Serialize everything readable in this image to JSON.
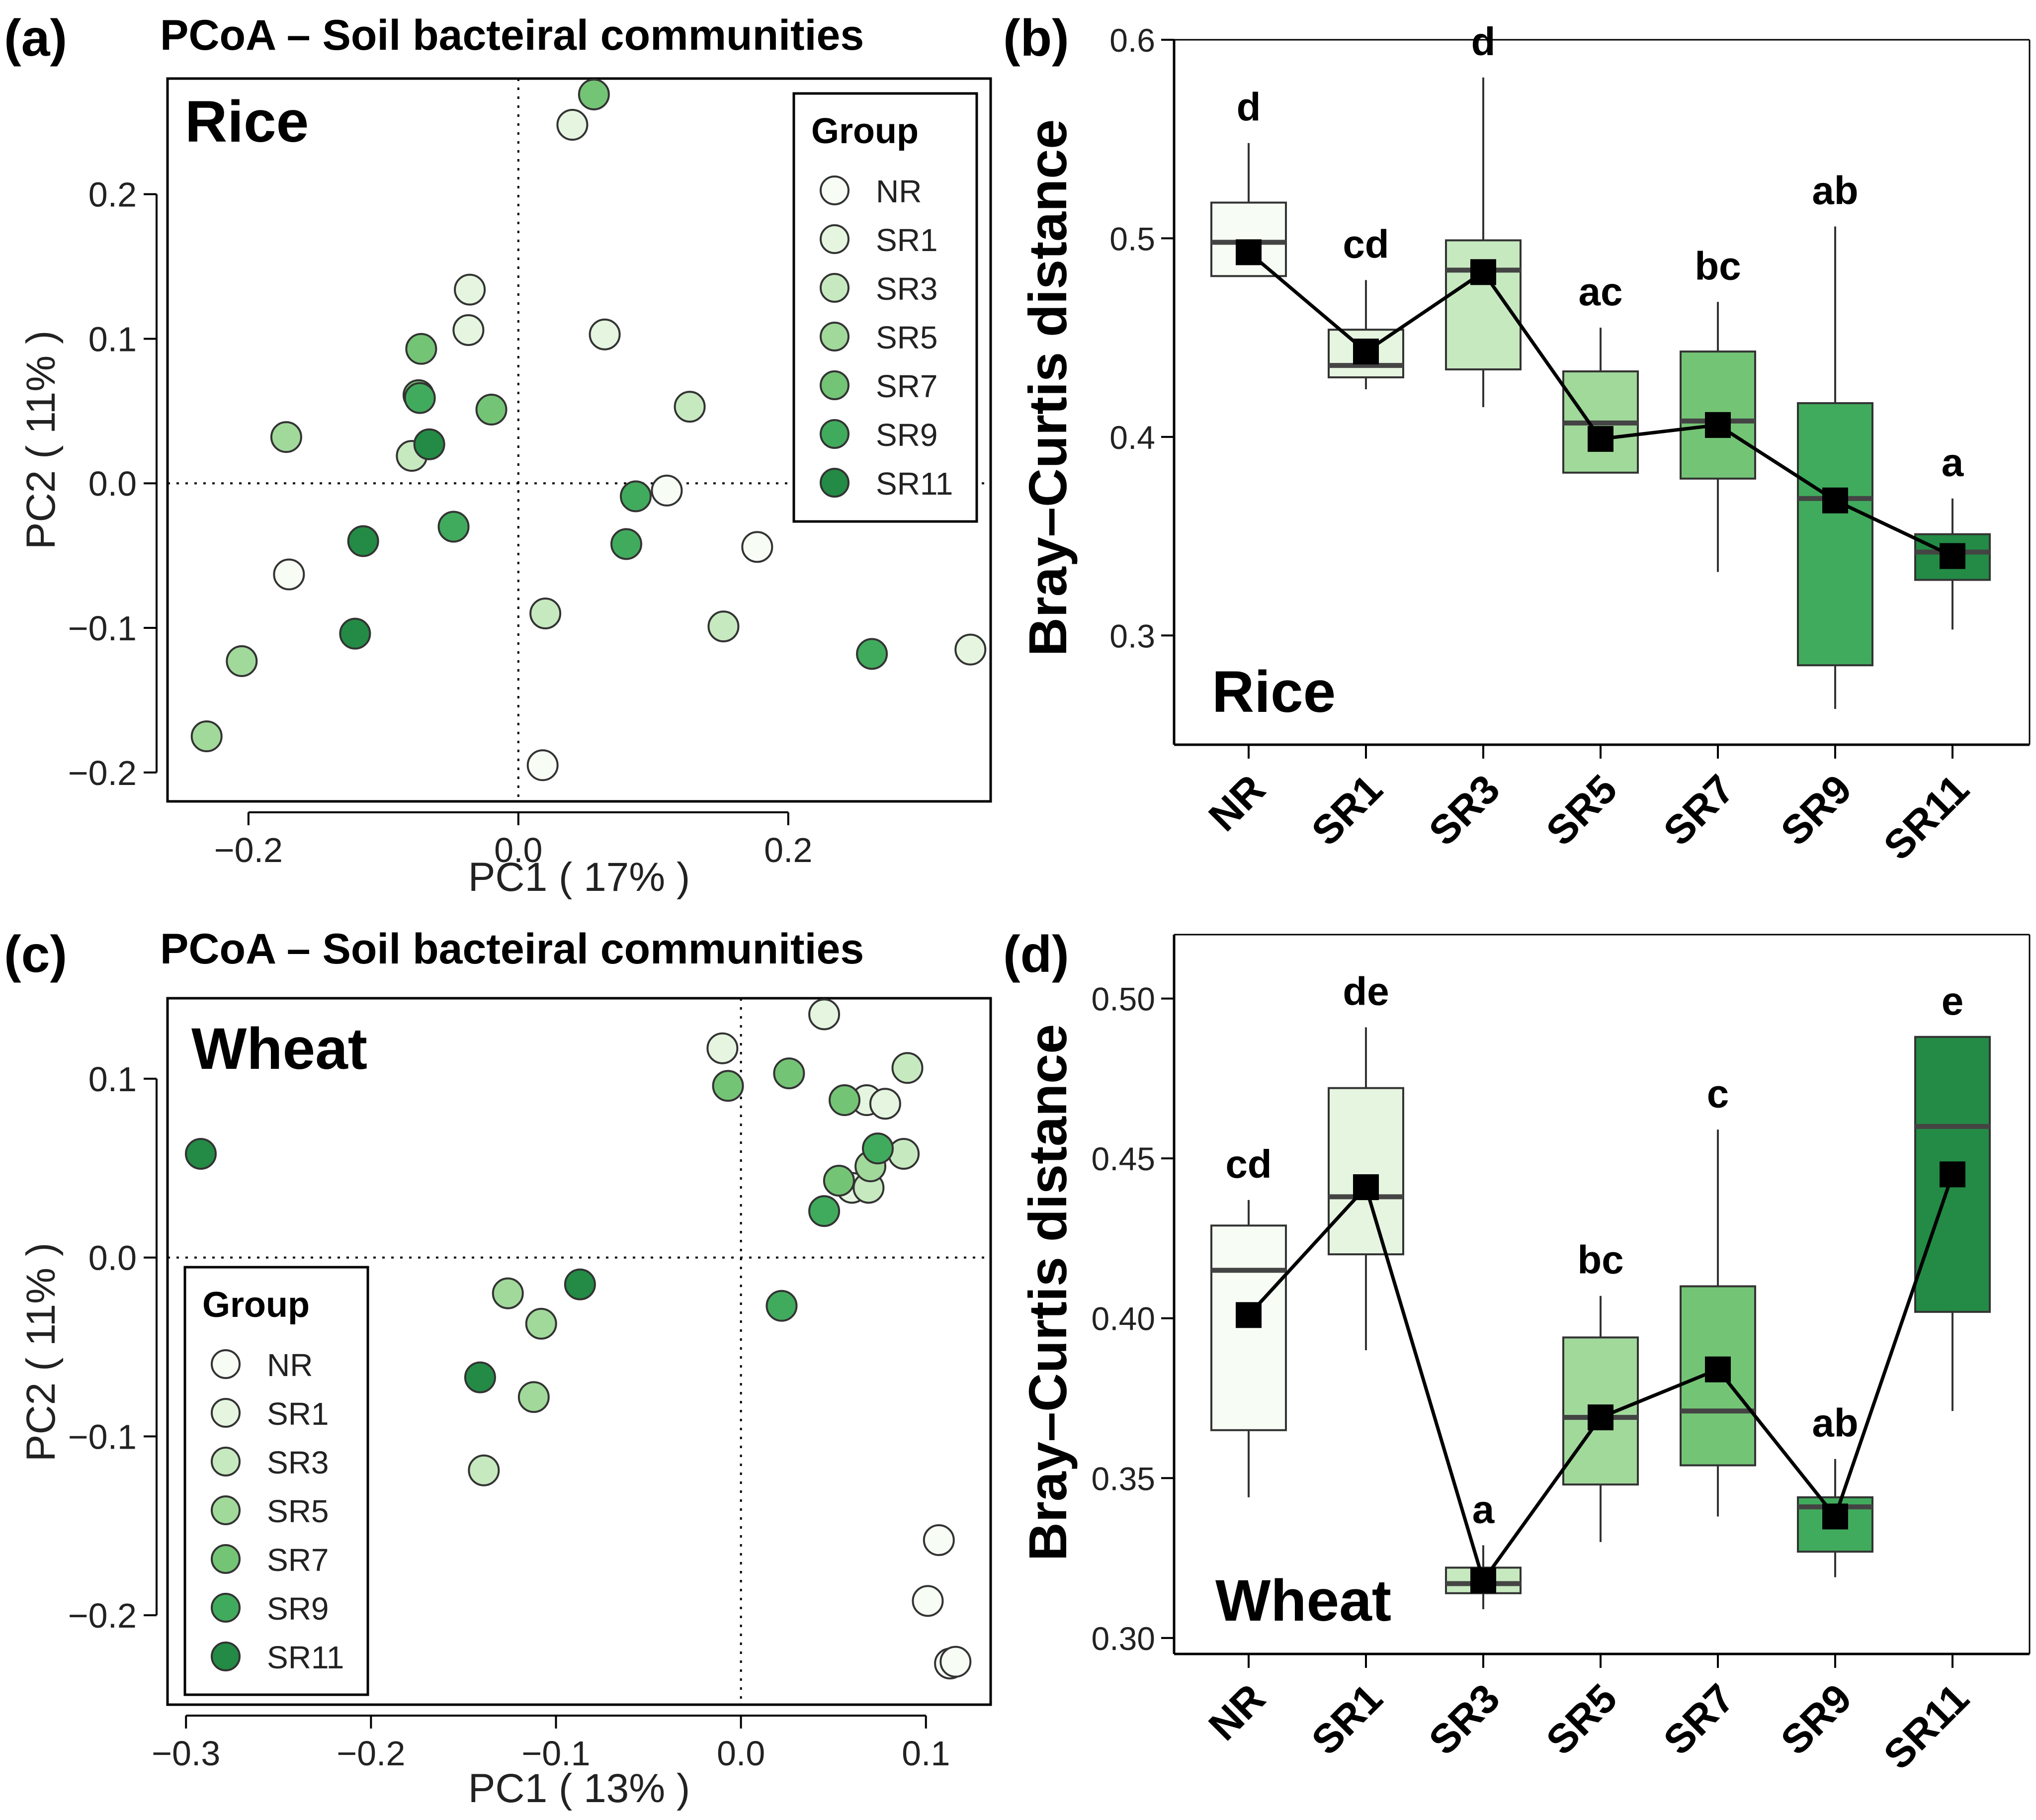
{
  "colors": {
    "NR": "#f7fcf5",
    "SR1": "#e5f5e0",
    "SR3": "#c7e9c0",
    "SR5": "#a1d99b",
    "SR7": "#74c476",
    "SR9": "#41ab5d",
    "SR11": "#238b45"
  },
  "chart_data": [
    {
      "id": "a",
      "type": "scatter",
      "panel_label": "(a)",
      "title": "PCoA – Soil bacteiral communities",
      "inset_label": "Rice",
      "xlabel": "PC1 ( 17% )",
      "ylabel": "PC2 ( 11% )",
      "xlim": [
        -0.26,
        0.35
      ],
      "ylim": [
        -0.22,
        0.28
      ],
      "xticks": [
        -0.2,
        0.0,
        0.2
      ],
      "xtick_labels": [
        "−0.2",
        "0.0",
        "0.2"
      ],
      "yticks": [
        -0.2,
        -0.1,
        0.0,
        0.1,
        0.2
      ],
      "ytick_labels": [
        "−0.2",
        "−0.1",
        "0.0",
        "0.1",
        "0.2"
      ],
      "legend": {
        "title": "Group",
        "entries": [
          "NR",
          "SR1",
          "SR3",
          "SR5",
          "SR7",
          "SR9",
          "SR11"
        ],
        "placement": "top-right"
      },
      "points": [
        {
          "group": "NR",
          "x": 0.018,
          "y": -0.195
        },
        {
          "group": "NR",
          "x": -0.17,
          "y": -0.063
        },
        {
          "group": "NR",
          "x": 0.11,
          "y": -0.005
        },
        {
          "group": "NR",
          "x": 0.177,
          "y": -0.044
        },
        {
          "group": "SR1",
          "x": 0.064,
          "y": 0.103
        },
        {
          "group": "SR1",
          "x": -0.036,
          "y": 0.134
        },
        {
          "group": "SR1",
          "x": -0.037,
          "y": 0.106
        },
        {
          "group": "SR1",
          "x": 0.04,
          "y": 0.248
        },
        {
          "group": "SR1",
          "x": 0.335,
          "y": -0.115
        },
        {
          "group": "SR3",
          "x": 0.127,
          "y": 0.053
        },
        {
          "group": "SR3",
          "x": 0.02,
          "y": -0.09
        },
        {
          "group": "SR3",
          "x": 0.152,
          "y": -0.099
        },
        {
          "group": "SR3",
          "x": -0.079,
          "y": 0.019
        },
        {
          "group": "SR5",
          "x": -0.172,
          "y": 0.032
        },
        {
          "group": "SR5",
          "x": -0.231,
          "y": -0.175
        },
        {
          "group": "SR5",
          "x": -0.205,
          "y": -0.123
        },
        {
          "group": "SR7",
          "x": 0.056,
          "y": 0.269
        },
        {
          "group": "SR7",
          "x": -0.072,
          "y": 0.093
        },
        {
          "group": "SR7",
          "x": -0.074,
          "y": 0.061
        },
        {
          "group": "SR7",
          "x": -0.02,
          "y": 0.051
        },
        {
          "group": "SR9",
          "x": -0.073,
          "y": 0.059
        },
        {
          "group": "SR9",
          "x": 0.087,
          "y": -0.009
        },
        {
          "group": "SR9",
          "x": 0.08,
          "y": -0.042
        },
        {
          "group": "SR9",
          "x": -0.048,
          "y": -0.03
        },
        {
          "group": "SR9",
          "x": 0.262,
          "y": -0.118
        },
        {
          "group": "SR11",
          "x": -0.066,
          "y": 0.027
        },
        {
          "group": "SR11",
          "x": -0.115,
          "y": -0.04
        },
        {
          "group": "SR11",
          "x": -0.121,
          "y": -0.104
        }
      ]
    },
    {
      "id": "b",
      "type": "box",
      "panel_label": "(b)",
      "inset_label": "Rice",
      "ylabel": "Bray–Curtis distance",
      "ylim": [
        0.245,
        0.6
      ],
      "yticks": [
        0.3,
        0.4,
        0.5,
        0.6
      ],
      "ytick_labels": [
        "0.3",
        "0.4",
        "0.5",
        "0.6"
      ],
      "categories": [
        "NR",
        "SR1",
        "SR3",
        "SR5",
        "SR7",
        "SR9",
        "SR11"
      ],
      "boxes": [
        {
          "min": 0.481,
          "q1": 0.481,
          "median": 0.498,
          "q3": 0.518,
          "max": 0.548,
          "mean": 0.493,
          "letter": "d"
        },
        {
          "min": 0.424,
          "q1": 0.43,
          "median": 0.436,
          "q3": 0.454,
          "max": 0.479,
          "mean": 0.443,
          "letter": "cd"
        },
        {
          "min": 0.415,
          "q1": 0.434,
          "median": 0.484,
          "q3": 0.499,
          "max": 0.581,
          "mean": 0.483,
          "letter": "d"
        },
        {
          "min": 0.382,
          "q1": 0.382,
          "median": 0.407,
          "q3": 0.433,
          "max": 0.455,
          "mean": 0.399,
          "letter": "ac"
        },
        {
          "min": 0.332,
          "q1": 0.379,
          "median": 0.408,
          "q3": 0.443,
          "max": 0.468,
          "mean": 0.406,
          "letter": "bc"
        },
        {
          "min": 0.263,
          "q1": 0.285,
          "median": 0.369,
          "q3": 0.417,
          "max": 0.506,
          "mean": 0.368,
          "letter": "ab"
        },
        {
          "min": 0.303,
          "q1": 0.328,
          "median": 0.342,
          "q3": 0.351,
          "max": 0.369,
          "mean": 0.34,
          "letter": "a"
        }
      ]
    },
    {
      "id": "c",
      "type": "scatter",
      "panel_label": "(c)",
      "title": "PCoA – Soil bacteiral communities",
      "inset_label": "Wheat",
      "xlabel": "PC1 ( 13% )",
      "ylabel": "PC2 ( 11% )",
      "xlim": [
        -0.31,
        0.135
      ],
      "ylim": [
        -0.25,
        0.145
      ],
      "xticks": [
        -0.3,
        -0.2,
        -0.1,
        0.0,
        0.1
      ],
      "xtick_labels": [
        "−0.3",
        "−0.2",
        "−0.1",
        "0.0",
        "0.1"
      ],
      "yticks": [
        -0.2,
        -0.1,
        0.0,
        0.1
      ],
      "ytick_labels": [
        "−0.2",
        "−0.1",
        "0.0",
        "0.1"
      ],
      "legend": {
        "title": "Group",
        "entries": [
          "NR",
          "SR1",
          "SR3",
          "SR5",
          "SR7",
          "SR9",
          "SR11"
        ],
        "placement": "bottom-left"
      },
      "points": [
        {
          "group": "NR",
          "x": 0.107,
          "y": -0.158
        },
        {
          "group": "NR",
          "x": 0.101,
          "y": -0.192
        },
        {
          "group": "NR",
          "x": 0.113,
          "y": -0.227
        },
        {
          "group": "NR",
          "x": 0.116,
          "y": -0.226
        },
        {
          "group": "SR1",
          "x": -0.01,
          "y": 0.117
        },
        {
          "group": "SR1",
          "x": 0.045,
          "y": 0.136
        },
        {
          "group": "SR1",
          "x": 0.068,
          "y": 0.088
        },
        {
          "group": "SR1",
          "x": 0.078,
          "y": 0.086
        },
        {
          "group": "SR1",
          "x": 0.06,
          "y": 0.039
        },
        {
          "group": "SR3",
          "x": 0.09,
          "y": 0.106
        },
        {
          "group": "SR3",
          "x": 0.088,
          "y": 0.058
        },
        {
          "group": "SR3",
          "x": 0.069,
          "y": 0.039
        },
        {
          "group": "SR3",
          "x": -0.139,
          "y": -0.119
        },
        {
          "group": "SR5",
          "x": -0.126,
          "y": -0.02
        },
        {
          "group": "SR5",
          "x": -0.108,
          "y": -0.037
        },
        {
          "group": "SR5",
          "x": -0.112,
          "y": -0.078
        },
        {
          "group": "SR5",
          "x": 0.07,
          "y": 0.051
        },
        {
          "group": "SR7",
          "x": -0.007,
          "y": 0.096
        },
        {
          "group": "SR7",
          "x": 0.026,
          "y": 0.103
        },
        {
          "group": "SR7",
          "x": 0.056,
          "y": 0.088
        },
        {
          "group": "SR7",
          "x": 0.053,
          "y": 0.043
        },
        {
          "group": "SR9",
          "x": 0.074,
          "y": 0.061
        },
        {
          "group": "SR9",
          "x": 0.045,
          "y": 0.026
        },
        {
          "group": "SR9",
          "x": 0.022,
          "y": -0.027
        },
        {
          "group": "SR11",
          "x": -0.087,
          "y": -0.015
        },
        {
          "group": "SR11",
          "x": -0.141,
          "y": -0.067
        },
        {
          "group": "SR11",
          "x": -0.292,
          "y": 0.058
        }
      ]
    },
    {
      "id": "d",
      "type": "box",
      "panel_label": "(d)",
      "inset_label": "Wheat",
      "ylabel": "Bray–Curtis distance",
      "ylim": [
        0.295,
        0.52
      ],
      "yticks": [
        0.3,
        0.35,
        0.4,
        0.45,
        0.5
      ],
      "ytick_labels": [
        "0.30",
        "0.35",
        "0.40",
        "0.45",
        "0.50"
      ],
      "categories": [
        "NR",
        "SR1",
        "SR3",
        "SR5",
        "SR7",
        "SR9",
        "SR11"
      ],
      "boxes": [
        {
          "min": 0.344,
          "q1": 0.365,
          "median": 0.415,
          "q3": 0.429,
          "max": 0.437,
          "mean": 0.401,
          "letter": "cd"
        },
        {
          "min": 0.39,
          "q1": 0.42,
          "median": 0.438,
          "q3": 0.472,
          "max": 0.491,
          "mean": 0.441,
          "letter": "de"
        },
        {
          "min": 0.309,
          "q1": 0.314,
          "median": 0.317,
          "q3": 0.322,
          "max": 0.329,
          "mean": 0.318,
          "letter": "a"
        },
        {
          "min": 0.33,
          "q1": 0.348,
          "median": 0.369,
          "q3": 0.394,
          "max": 0.407,
          "mean": 0.369,
          "letter": "bc"
        },
        {
          "min": 0.338,
          "q1": 0.354,
          "median": 0.371,
          "q3": 0.41,
          "max": 0.459,
          "mean": 0.384,
          "letter": "c"
        },
        {
          "min": 0.319,
          "q1": 0.327,
          "median": 0.341,
          "q3": 0.344,
          "max": 0.356,
          "mean": 0.338,
          "letter": "ab"
        },
        {
          "min": 0.371,
          "q1": 0.402,
          "median": 0.46,
          "q3": 0.488,
          "max": 0.488,
          "mean": 0.445,
          "letter": "e"
        }
      ]
    }
  ]
}
